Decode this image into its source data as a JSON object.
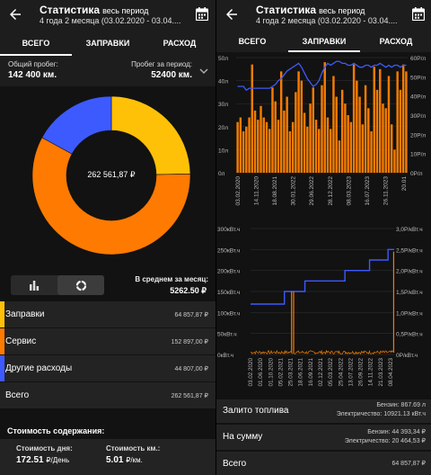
{
  "left": {
    "title": "Статистика",
    "title_sub": "весь период",
    "subtitle": "4 года 2 месяца (03.02.2020 - 03.04....",
    "tabs": [
      "ВСЕГО",
      "ЗАПРАВКИ",
      "РАСХОД"
    ],
    "mileage": {
      "total_label": "Общий пробег:",
      "total_value": "142 400 км.",
      "period_label": "Пробег за период:",
      "period_value": "52400 км."
    },
    "donut_total": "262 561,87 ₽",
    "avg_label": "В среднем за месяц:",
    "avg_value": "5262.50 ₽",
    "categories": [
      {
        "label": "Заправки",
        "amount": "64 857,87 ₽",
        "color": "#FFC107"
      },
      {
        "label": "Сервис",
        "amount": "152 897,00 ₽",
        "color": "#FF7A00"
      },
      {
        "label": "Другие расходы",
        "amount": "44 807,00 ₽",
        "color": "#3D5AFE"
      },
      {
        "label": "Всего",
        "amount": "262 561,87 ₽",
        "color": "#232323"
      }
    ],
    "cost_head": "Стоимость содержания:",
    "cost_day_label": "Стоимость дня:",
    "cost_day_value": "172.51",
    "cost_day_unit": "₽/День",
    "cost_km_label": "Стоимость км.:",
    "cost_km_value": "5.01",
    "cost_km_unit": "₽/км."
  },
  "right": {
    "title": "Статистика",
    "title_sub": "весь период",
    "subtitle": "4 года 2 месяца (03.02.2020 - 03.04....",
    "tabs": [
      "ВСЕГО",
      "ЗАПРАВКИ",
      "РАСХОД"
    ],
    "summary": [
      {
        "label": "Залито топлива",
        "line1": "Бензин: 867.69 л",
        "line2": "Электричество: 10921.13 кВт.ч"
      },
      {
        "label": "На сумму",
        "line1": "Бензин: 44 393,34 ₽",
        "line2": "Электричество: 20 464,53 ₽"
      },
      {
        "label": "Всего",
        "line1": "64 857,87 ₽",
        "line2": ""
      }
    ]
  },
  "chart_data": [
    {
      "type": "pie",
      "labels": [
        "Заправки",
        "Сервис",
        "Другие расходы"
      ],
      "values": [
        64857.87,
        152897.0,
        44807.0
      ],
      "colors": [
        "#FFC107",
        "#FF7A00",
        "#3D5AFE"
      ],
      "center_text": "262 561,87 ₽"
    },
    {
      "type": "bar",
      "y_left": {
        "ticks": [
          "0л",
          "10л",
          "20л",
          "30л",
          "40л",
          "50л"
        ],
        "ylim": [
          0,
          50
        ]
      },
      "y_right": {
        "ticks": [
          "0Р/л",
          "10Р/л",
          "20Р/л",
          "30Р/л",
          "40Р/л",
          "50Р/л",
          "60Р/л"
        ],
        "ylim": [
          0,
          60
        ]
      },
      "x_ticks": [
        "03.02.2020",
        "14.11.2020",
        "18.08.2021",
        "30.01.2022",
        "29.06.2022",
        "28.12.2022",
        "08.03.2023",
        "16.07.2023",
        "26.11.2023",
        "20.01"
      ],
      "series": [
        {
          "type": "bar",
          "color": "#F57C00",
          "values": [
            22,
            24,
            18,
            20,
            24,
            47,
            27,
            23,
            29,
            24,
            22,
            19,
            37,
            31,
            23,
            44,
            27,
            33,
            18,
            22,
            35,
            44,
            40,
            26,
            20,
            30,
            37,
            23,
            19,
            38,
            48,
            24,
            19,
            42,
            33,
            14,
            36,
            30,
            25,
            22,
            47,
            40,
            33,
            21,
            38,
            28,
            18,
            46,
            36,
            45,
            30,
            28,
            42,
            21,
            10,
            44,
            36,
            47,
            44
          ]
        },
        {
          "type": "line",
          "color": "#3D5AFE",
          "values": [
            45,
            45,
            45,
            43,
            44,
            44,
            44,
            44,
            44,
            44,
            44,
            44,
            45,
            46,
            48,
            49,
            51,
            53,
            54,
            55,
            56,
            57,
            55,
            52,
            49,
            47,
            45,
            46,
            48,
            52,
            55,
            57,
            56,
            57,
            58,
            58,
            57,
            57,
            56,
            56,
            57,
            56,
            55,
            55,
            56,
            56,
            55,
            56,
            56,
            57,
            56,
            55,
            56,
            55,
            56,
            56,
            55,
            56,
            56
          ]
        }
      ]
    },
    {
      "type": "line",
      "y_left": {
        "ticks": [
          "0кВт.ч",
          "50кВт.ч",
          "100кВт.ч",
          "150кВт.ч",
          "200кВт.ч",
          "250кВт.ч",
          "300кВт.ч"
        ],
        "ylim": [
          0,
          300
        ]
      },
      "y_right": {
        "ticks": [
          "0Р/кВт.ч",
          "0,5Р/кВт.ч",
          "1,0Р/кВт.ч",
          "1,5Р/кВт.ч",
          "2,0Р/кВт.ч",
          "2,5Р/кВт.ч",
          "3,0Р/кВт.ч"
        ],
        "ylim": [
          0,
          3
        ]
      },
      "x_ticks": [
        "03.02.2020",
        "01.06.2020",
        "01.10.2020",
        "05.02.2021",
        "25.03.2021",
        "18.06.2021",
        "16.09.2021",
        "02.12.2021",
        "05.03.2022",
        "25.04.2022",
        "13.07.2022",
        "26.09.2022",
        "14.11.2022",
        "21.03.2023",
        "08.04.2023"
      ],
      "series": [
        {
          "name": "",
          "color": "#3D5AFE",
          "kind": "step",
          "x": [
            0,
            3.3,
            3.3,
            5.3,
            5.3,
            9.2,
            9.2,
            11.6,
            11.6,
            13.4,
            13.4,
            14
          ],
          "y": [
            120,
            120,
            150,
            150,
            175,
            175,
            200,
            200,
            225,
            225,
            250,
            250
          ]
        },
        {
          "name": "",
          "color": "#F57C00",
          "kind": "noisy",
          "baseline": 5,
          "spikes": [
            {
              "x": 4.0,
              "y": 150
            },
            {
              "x": 4.2,
              "y": 150
            },
            {
              "x": 13.95,
              "y": 245
            }
          ]
        }
      ]
    }
  ]
}
